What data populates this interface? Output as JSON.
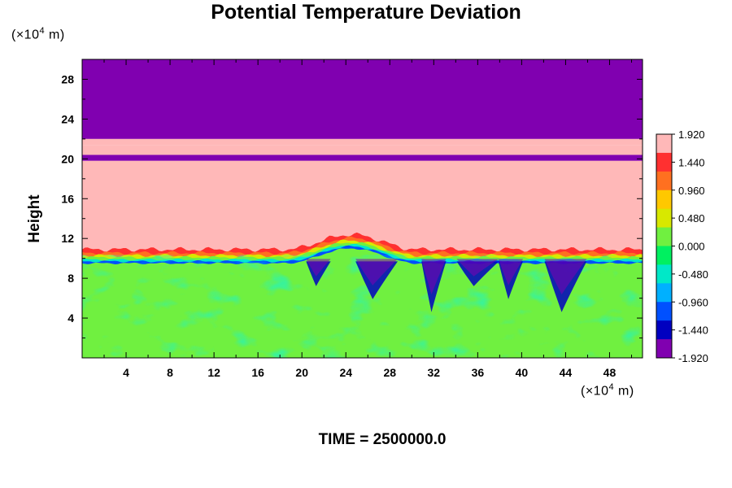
{
  "title": "Potential Temperature Deviation",
  "y_axis": {
    "label": "Height",
    "unit_prefix": "(×10",
    "unit_exp": "4",
    "unit_suffix": " m)"
  },
  "x_axis": {
    "unit_prefix": "(×10",
    "unit_exp": "4",
    "unit_suffix": " m)"
  },
  "time_label": "TIME = 2500000.0",
  "chart_data": {
    "type": "heatmap",
    "title": "Potential Temperature Deviation",
    "ylabel": "Height",
    "xlabel": "",
    "x_unit": "(×10^4 m)",
    "y_unit": "(×10^4 m)",
    "xlim": [
      0,
      51
    ],
    "ylim": [
      0,
      30
    ],
    "x_ticks": [
      "4",
      "8",
      "12",
      "16",
      "20",
      "24",
      "28",
      "32",
      "36",
      "40",
      "44",
      "48"
    ],
    "y_ticks": [
      "4",
      "8",
      "12",
      "16",
      "20",
      "24",
      "28"
    ],
    "colorbar": {
      "labels": [
        "1.920",
        "1.440",
        "0.960",
        "0.480",
        "0.000",
        "-0.480",
        "-0.960",
        "-1.440",
        "-1.920"
      ],
      "range": [
        -1.92,
        1.92
      ],
      "colors": [
        "#ffb8b8",
        "#ff3030",
        "#ff7020",
        "#ffc800",
        "#d8e800",
        "#70f040",
        "#00f060",
        "#00e8c8",
        "#00b0ff",
        "#0050ff",
        "#0000c0",
        "#8000b0"
      ]
    },
    "regions": [
      {
        "name": "upper layer",
        "y_from": 22,
        "y_to": 30,
        "value": -1.92
      },
      {
        "name": "thin band",
        "y_from": 21.4,
        "y_to": 22,
        "value": 1.92
      },
      {
        "name": "thin band",
        "y_from": 20.4,
        "y_to": 21.4,
        "value": 1.92
      },
      {
        "name": "thin band",
        "y_from": 19.8,
        "y_to": 20.4,
        "value": -1.92
      },
      {
        "name": "middle layer",
        "y_from": 10.5,
        "y_to": 19.8,
        "value": 1.92
      },
      {
        "name": "lower layer",
        "y_from": 0,
        "y_to": 10,
        "value": 0.2
      }
    ],
    "interface_height": 10,
    "bump": {
      "x_center": 24.5,
      "half_width": 6,
      "height": 1.5
    },
    "blue_plumes_x": [
      21.5,
      26.8,
      32,
      36,
      39,
      44
    ]
  }
}
